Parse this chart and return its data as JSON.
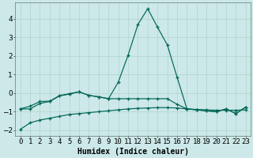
{
  "title": "",
  "xlabel": "Humidex (Indice chaleur)",
  "ylabel": "",
  "background_color": "#cce8e8",
  "grid_color": "#b0d4cc",
  "line_color": "#006655",
  "x_values": [
    0,
    1,
    2,
    3,
    4,
    5,
    6,
    7,
    8,
    9,
    10,
    11,
    12,
    13,
    14,
    15,
    16,
    17,
    18,
    19,
    20,
    21,
    22,
    23
  ],
  "series1": [
    -0.85,
    -0.85,
    -0.55,
    -0.45,
    -0.15,
    -0.05,
    0.07,
    -0.12,
    -0.2,
    -0.3,
    0.6,
    2.05,
    3.7,
    4.55,
    3.55,
    2.6,
    0.85,
    -0.85,
    -0.9,
    -0.95,
    -1.0,
    -0.85,
    -1.1,
    -0.75
  ],
  "series2": [
    -0.85,
    -0.7,
    -0.45,
    -0.43,
    -0.13,
    -0.03,
    0.07,
    -0.12,
    -0.2,
    -0.3,
    -0.3,
    -0.3,
    -0.3,
    -0.3,
    -0.3,
    -0.3,
    -0.6,
    -0.85,
    -0.9,
    -0.95,
    -1.0,
    -0.85,
    -1.1,
    -0.75
  ],
  "series3": [
    -1.95,
    -1.6,
    -1.45,
    -1.35,
    -1.25,
    -1.15,
    -1.1,
    -1.05,
    -1.0,
    -0.95,
    -0.9,
    -0.85,
    -0.82,
    -0.8,
    -0.78,
    -0.78,
    -0.8,
    -0.85,
    -0.88,
    -0.9,
    -0.92,
    -0.92,
    -0.92,
    -0.9
  ],
  "ylim": [
    -2.3,
    4.9
  ],
  "xlim": [
    -0.5,
    23.5
  ],
  "yticks": [
    -2,
    -1,
    0,
    1,
    2,
    3,
    4
  ],
  "xtick_labels": [
    "0",
    "1",
    "2",
    "3",
    "4",
    "5",
    "6",
    "7",
    "8",
    "9",
    "10",
    "11",
    "12",
    "13",
    "14",
    "15",
    "16",
    "17",
    "18",
    "19",
    "20",
    "21",
    "22",
    "23"
  ],
  "xlabel_fontsize": 7,
  "tick_fontsize": 6.5
}
